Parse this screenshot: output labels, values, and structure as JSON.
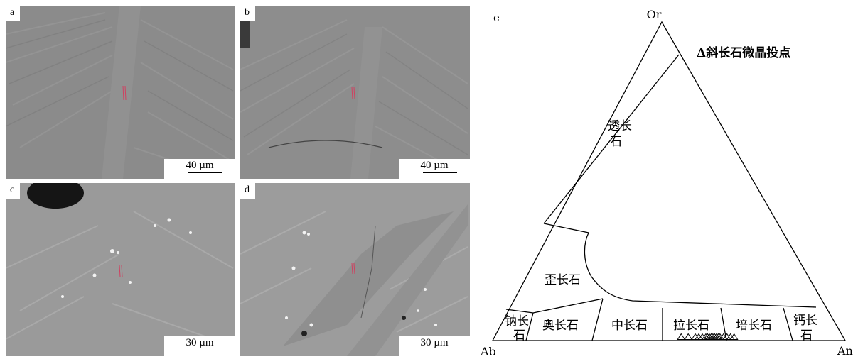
{
  "panels": [
    {
      "id": "a",
      "label": "a",
      "scale": "40 µm"
    },
    {
      "id": "b",
      "label": "b",
      "scale": "40 µm"
    },
    {
      "id": "c",
      "label": "c",
      "scale": "30 µm"
    },
    {
      "id": "d",
      "label": "d",
      "scale": "30 µm"
    }
  ],
  "diagram": {
    "label": "e",
    "vertices": {
      "top": "Or",
      "left": "Ab",
      "right": "An"
    },
    "legend": "Δ斜长石微晶投点",
    "fields": {
      "sanidine": "透长",
      "sanidine2": "石",
      "anorthoclase": "歪长石",
      "albite": "钠长",
      "albite2": "石",
      "oligoclase": "奥长石",
      "andesine": "中长石",
      "labradorite": "拉长石",
      "bytownite": "培长石",
      "anorthite": "钙长",
      "anorthite2": "石"
    }
  },
  "chart_data": {
    "type": "scatter",
    "title": "",
    "xlabel": "",
    "ylabel": "",
    "series": [
      {
        "name": "斜长石微晶投点",
        "points": [
          {
            "An": 53,
            "Or": 1
          },
          {
            "An": 55,
            "Or": 1
          },
          {
            "An": 57,
            "Or": 1
          },
          {
            "An": 58,
            "Or": 1
          },
          {
            "An": 59,
            "Or": 1
          },
          {
            "An": 60,
            "Or": 1
          },
          {
            "An": 60.5,
            "Or": 1
          },
          {
            "An": 61,
            "Or": 1
          },
          {
            "An": 61.5,
            "Or": 1
          },
          {
            "An": 62,
            "Or": 1
          },
          {
            "An": 62.5,
            "Or": 1
          },
          {
            "An": 63,
            "Or": 1
          },
          {
            "An": 63.5,
            "Or": 1
          },
          {
            "An": 64,
            "Or": 1
          },
          {
            "An": 65,
            "Or": 1
          },
          {
            "An": 66,
            "Or": 1
          },
          {
            "An": 67,
            "Or": 1
          },
          {
            "An": 68,
            "Or": 1
          }
        ]
      }
    ]
  }
}
